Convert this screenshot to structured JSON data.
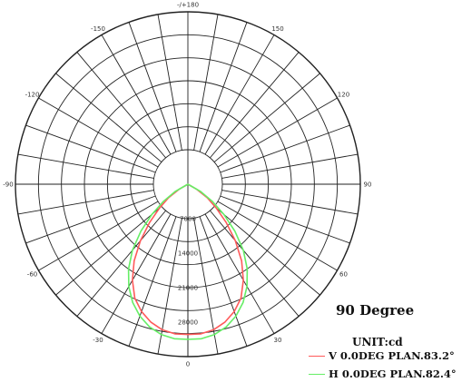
{
  "chart_data": {
    "type": "polar-line",
    "title": "90 Degree",
    "unit_label": "UNIT:cd",
    "angle_ticks": [
      {
        "deg": 180,
        "label": "-/+180"
      },
      {
        "deg": 150,
        "label": "150"
      },
      {
        "deg": -150,
        "label": "-150"
      },
      {
        "deg": 120,
        "label": "120"
      },
      {
        "deg": -120,
        "label": "-120"
      },
      {
        "deg": 90,
        "label": "90"
      },
      {
        "deg": -90,
        "label": "-90"
      },
      {
        "deg": 60,
        "label": "60"
      },
      {
        "deg": -60,
        "label": "-60"
      },
      {
        "deg": 30,
        "label": "30"
      },
      {
        "deg": -30,
        "label": "-30"
      },
      {
        "deg": 0,
        "label": "0"
      }
    ],
    "radial_labels": [
      "7000",
      "14000",
      "21000",
      "28000"
    ],
    "radial_max": 35000,
    "series": [
      {
        "name": "V 0.0DEG PLAN.83.2°",
        "color": "#ff5a5a",
        "points": [
          [
            -60,
            2000
          ],
          [
            -55,
            4800
          ],
          [
            -50,
            7500
          ],
          [
            -45,
            11000
          ],
          [
            -40,
            15000
          ],
          [
            -35,
            19000
          ],
          [
            -30,
            22500
          ],
          [
            -25,
            25500
          ],
          [
            -20,
            27500
          ],
          [
            -15,
            29000
          ],
          [
            -10,
            30000
          ],
          [
            -5,
            30500
          ],
          [
            0,
            30500
          ],
          [
            5,
            30500
          ],
          [
            10,
            30000
          ],
          [
            15,
            29000
          ],
          [
            20,
            27500
          ],
          [
            25,
            25500
          ],
          [
            30,
            22500
          ],
          [
            35,
            19000
          ],
          [
            40,
            15000
          ],
          [
            45,
            11000
          ],
          [
            50,
            7500
          ],
          [
            55,
            4800
          ],
          [
            60,
            2000
          ]
        ]
      },
      {
        "name": "H 0.0DEG PLAN.82.4°",
        "color": "#66ee66",
        "points": [
          [
            -60,
            3000
          ],
          [
            -55,
            6000
          ],
          [
            -50,
            9500
          ],
          [
            -45,
            13500
          ],
          [
            -40,
            17500
          ],
          [
            -35,
            21000
          ],
          [
            -30,
            24000
          ],
          [
            -25,
            26500
          ],
          [
            -20,
            28500
          ],
          [
            -15,
            30000
          ],
          [
            -10,
            31000
          ],
          [
            -5,
            31500
          ],
          [
            0,
            31500
          ],
          [
            5,
            31500
          ],
          [
            10,
            31000
          ],
          [
            15,
            30000
          ],
          [
            20,
            28500
          ],
          [
            25,
            26500
          ],
          [
            30,
            24000
          ],
          [
            35,
            21000
          ],
          [
            40,
            17500
          ],
          [
            45,
            13500
          ],
          [
            50,
            9500
          ],
          [
            55,
            6000
          ],
          [
            60,
            3000
          ]
        ]
      }
    ]
  }
}
